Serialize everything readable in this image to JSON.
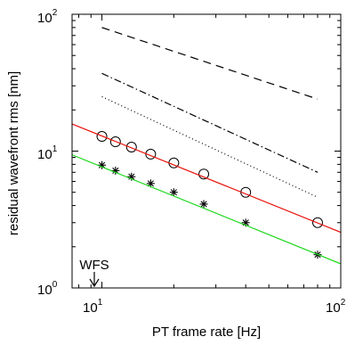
{
  "chart_data": {
    "type": "line",
    "xlabel": "PT frame rate [Hz]",
    "ylabel": "residual wavefront rms [nm]",
    "xscale": "log",
    "yscale": "log",
    "xlim": [
      7.5,
      100
    ],
    "ylim": [
      1,
      100
    ],
    "xticks": [
      {
        "base": "10",
        "exp": "1",
        "value": 10
      },
      {
        "base": "10",
        "exp": "2",
        "value": 100
      }
    ],
    "yticks": [
      {
        "base": "10",
        "exp": "0",
        "value": 1
      },
      {
        "base": "10",
        "exp": "1",
        "value": 10
      },
      {
        "base": "10",
        "exp": "2",
        "value": 100
      }
    ],
    "grid": false,
    "series": [
      {
        "style": "dashed",
        "color": "#000000",
        "x": [
          10,
          80
        ],
        "y": [
          80,
          24
        ]
      },
      {
        "style": "dashdot",
        "color": "#000000",
        "x": [
          10,
          80
        ],
        "y": [
          37,
          7
        ]
      },
      {
        "style": "dotted",
        "color": "#000000",
        "x": [
          10,
          80
        ],
        "y": [
          25,
          4.6
        ]
      },
      {
        "style": "markers",
        "marker": "circle",
        "color": "#000000",
        "x": [
          10,
          11.4,
          13.3,
          16,
          20,
          26.7,
          40,
          80
        ],
        "y": [
          12.8,
          11.7,
          10.7,
          9.5,
          8.2,
          6.8,
          5.0,
          3.0
        ]
      },
      {
        "style": "solid",
        "color": "#e8120c",
        "x": [
          7.5,
          100
        ],
        "y": [
          15.8,
          2.55
        ]
      },
      {
        "style": "markers",
        "marker": "asterisk",
        "color": "#000000",
        "x": [
          10,
          11.4,
          13.3,
          16,
          20,
          26.7,
          40,
          80
        ],
        "y": [
          7.9,
          7.2,
          6.5,
          5.8,
          5.0,
          4.1,
          3.0,
          1.75
        ]
      },
      {
        "style": "solid",
        "color": "#1ed81e",
        "x": [
          7.5,
          100
        ],
        "y": [
          9.4,
          1.5
        ]
      }
    ],
    "annotations": [
      {
        "text": "WFS",
        "x": 10
      }
    ]
  }
}
